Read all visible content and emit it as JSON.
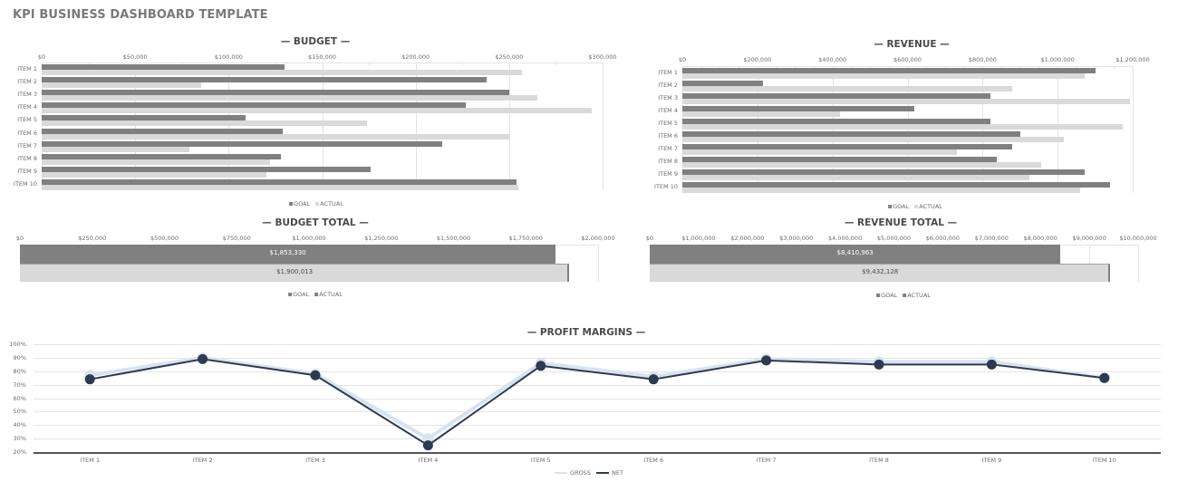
{
  "page": {
    "title": "KPI BUSINESS DASHBOARD TEMPLATE"
  },
  "colors": {
    "goal": "#808080",
    "actual": "#d9d9d9",
    "gross": "#d6e3f0",
    "net": "#2e3a4f",
    "grid": "#e4e4e4",
    "text": "#6b6b6b"
  },
  "legend": {
    "goal": "GOAL",
    "actual": "ACTUAL",
    "gross": "GROSS",
    "net": "NET"
  },
  "chart_data": [
    {
      "id": "budget",
      "type": "bar",
      "orientation": "horizontal",
      "title": "— BUDGET —",
      "categories": [
        "ITEM 1",
        "ITEM 2",
        "ITEM 3",
        "ITEM 4",
        "ITEM 5",
        "ITEM 6",
        "ITEM 7",
        "ITEM 8",
        "ITEM 9",
        "ITEM 10"
      ],
      "series": [
        {
          "name": "GOAL",
          "values": [
            130000,
            238000,
            250000,
            227000,
            109000,
            129000,
            214000,
            128000,
            176000,
            254000
          ]
        },
        {
          "name": "ACTUAL",
          "values": [
            257000,
            85500,
            265000,
            294000,
            174000,
            250000,
            79000,
            122000,
            120000,
            255000
          ]
        }
      ],
      "xlim": [
        0,
        300000
      ],
      "ticks": [
        "$0",
        "$50,000",
        "$100,000",
        "$150,000",
        "$200,000",
        "$250,000",
        "$300,000"
      ],
      "legend_position": "bottom",
      "grid": true
    },
    {
      "id": "revenue",
      "type": "bar",
      "orientation": "horizontal",
      "title": "— REVENUE —",
      "categories": [
        "ITEM 1",
        "ITEM 2",
        "ITEM 3",
        "ITEM 4",
        "ITEM 5",
        "ITEM 6",
        "ITEM 7",
        "ITEM 8",
        "ITEM 9",
        "ITEM 10"
      ],
      "series": [
        {
          "name": "GOAL",
          "values": [
            1100000,
            215000,
            820000,
            619000,
            820000,
            901000,
            878000,
            839000,
            1073000,
            1140000
          ]
        },
        {
          "name": "ACTUAL",
          "values": [
            1073000,
            878000,
            1193000,
            420000,
            1174000,
            1016000,
            732000,
            955000,
            924000,
            1059000
          ]
        }
      ],
      "xlim": [
        0,
        1200000
      ],
      "ticks": [
        "$0",
        "$200,000",
        "$400,000",
        "$600,000",
        "$800,000",
        "$1,000,000",
        "$1,200,000"
      ],
      "legend_position": "bottom",
      "grid": true
    },
    {
      "id": "budget_total",
      "type": "bar",
      "orientation": "horizontal",
      "title": "— BUDGET TOTAL —",
      "categories": [
        "GOAL",
        "ACTUAL"
      ],
      "values": [
        1853330,
        1900013
      ],
      "labels": [
        "$1,853,330",
        "$1,900,013"
      ],
      "xlim": [
        0,
        2000000
      ],
      "ticks": [
        "$0",
        "$250,000",
        "$500,000",
        "$750,000",
        "$1,000,000",
        "$1,250,000",
        "$1,500,000",
        "$1,750,000",
        "$2,000,000"
      ],
      "legend_position": "bottom"
    },
    {
      "id": "revenue_total",
      "type": "bar",
      "orientation": "horizontal",
      "title": "— REVENUE TOTAL —",
      "categories": [
        "GOAL",
        "ACTUAL"
      ],
      "values": [
        8410963,
        9432128
      ],
      "labels": [
        "$8,410,963",
        "$9,432,128"
      ],
      "xlim": [
        0,
        10000000
      ],
      "ticks": [
        "$0",
        "$1,000,000",
        "$2,000,000",
        "$3,000,000",
        "$4,000,000",
        "$5,000,000",
        "$6,000,000",
        "$7,000,000",
        "$8,000,000",
        "$9,000,000",
        "$10,000,000"
      ],
      "legend_position": "bottom"
    },
    {
      "id": "profit_margins",
      "type": "line",
      "title": "— PROFIT MARGINS —",
      "categories": [
        "ITEM 1",
        "ITEM 2",
        "ITEM 3",
        "ITEM 4",
        "ITEM 5",
        "ITEM 6",
        "ITEM 7",
        "ITEM 8",
        "ITEM 9",
        "ITEM 10"
      ],
      "series": [
        {
          "name": "GROSS",
          "values": [
            77,
            90,
            78,
            30,
            86,
            76,
            89,
            87,
            87,
            75
          ]
        },
        {
          "name": "NET",
          "values": [
            74,
            89,
            77,
            25,
            84,
            74,
            88,
            85,
            85,
            75
          ]
        }
      ],
      "ylim": [
        20,
        100
      ],
      "yticks": [
        "20%",
        "30%",
        "40%",
        "50%",
        "60%",
        "70%",
        "80%",
        "90%",
        "100%"
      ],
      "legend_position": "bottom",
      "grid": true
    }
  ]
}
